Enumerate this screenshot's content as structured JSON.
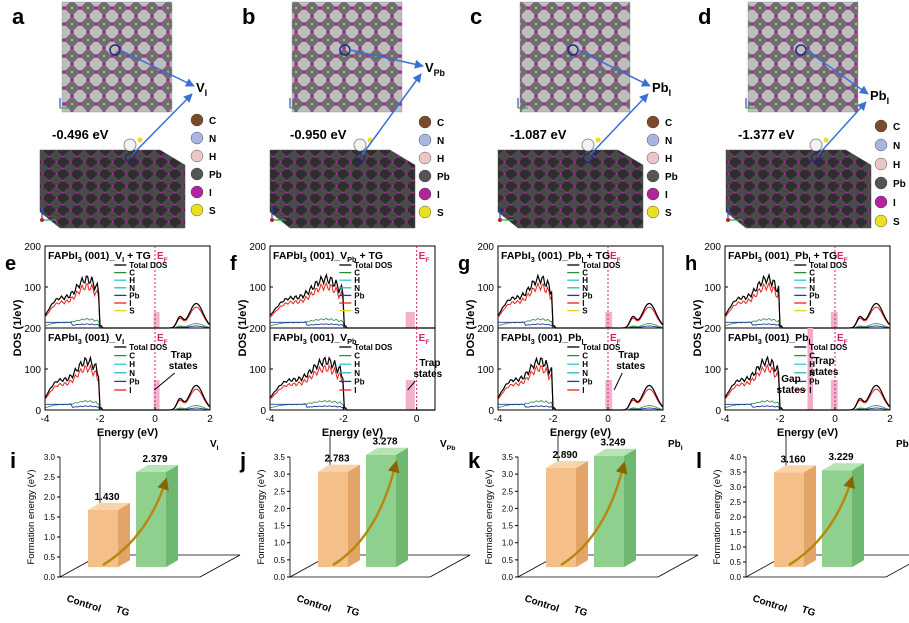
{
  "figure": {
    "letters": [
      "a",
      "b",
      "c",
      "d",
      "e",
      "f",
      "g",
      "h",
      "i",
      "j",
      "k",
      "l"
    ]
  },
  "structures": [
    {
      "letter": "a",
      "energy": "-0.496 eV",
      "defect_main": "V",
      "defect_sub": "I"
    },
    {
      "letter": "b",
      "energy": "-0.950 eV",
      "defect_main": "V",
      "defect_sub": "Pb"
    },
    {
      "letter": "c",
      "energy": "-1.087 eV",
      "defect_main": "Pb",
      "defect_sub": "I"
    },
    {
      "letter": "d",
      "energy": "-1.377 eV",
      "defect_main": "Pb",
      "defect_sub": "I"
    }
  ],
  "atom_legend": [
    {
      "label": "C",
      "color": "#7a4a2a"
    },
    {
      "label": "N",
      "color": "#aab4e0"
    },
    {
      "label": "H",
      "color": "#eac6c6"
    },
    {
      "label": "Pb",
      "color": "#555555"
    },
    {
      "label": "I",
      "color": "#b0249c"
    },
    {
      "label": "S",
      "color": "#e8e020"
    }
  ],
  "colors": {
    "dos_total": "#000000",
    "dos_C": "#2e8b3a",
    "dos_H": "#2ec7d0",
    "dos_N": "#27b5c0",
    "dos_Pb": "#1f3a9e",
    "dos_I": "#e8231e",
    "dos_S": "#e0d21a",
    "ef_line": "#d4226e",
    "trap_band": "#f3a9c9",
    "bar_control": "#f5bf8a",
    "bar_tg": "#8fd08f",
    "arrow": "#b8860b"
  },
  "chart_data": [
    {
      "panel": "e",
      "type": "line",
      "top_title": "FAPbI3 (001)_VI + TG",
      "bottom_title": "FAPbI3 (001)_VI",
      "top_legend": [
        "Total DOS",
        "C",
        "H",
        "N",
        "Pb",
        "I",
        "S"
      ],
      "bottom_legend": [
        "Total DOS",
        "C",
        "H",
        "N",
        "Pb",
        "I"
      ],
      "ef_label": "EF",
      "annotations": [
        "Trap states"
      ],
      "xlabel": "Energy (eV)",
      "ylabel": "DOS (1/eV)",
      "xlim": [
        -4,
        2
      ],
      "ylim": [
        0,
        200
      ],
      "xticks": [
        -4,
        -2,
        0,
        2
      ],
      "yticks": [
        0,
        100,
        200
      ],
      "trap_band": [
        -0.05,
        0.15
      ],
      "gap_band": null
    },
    {
      "panel": "f",
      "type": "line",
      "top_title": "FAPbI3 (001)_VPb + TG",
      "bottom_title": "FAPbI3 (001)_VPb",
      "top_legend": [
        "Total DOS",
        "C",
        "H",
        "N",
        "Pb",
        "I",
        "S"
      ],
      "bottom_legend": [
        "Total DOS",
        "C",
        "H",
        "N",
        "Pb",
        "I"
      ],
      "ef_label": "EF",
      "annotations": [
        "Trap states"
      ],
      "xlabel": "Energy (eV)",
      "ylabel": "DOS (1/eV)",
      "xlim": [
        -4,
        0.5
      ],
      "ylim": [
        0,
        200
      ],
      "xticks": [
        -4,
        -2,
        0
      ],
      "yticks": [
        0,
        100,
        200
      ],
      "trap_band": [
        -0.3,
        -0.05
      ],
      "gap_band": null
    },
    {
      "panel": "g",
      "type": "line",
      "top_title": "FAPbI3 (001)_PbI + TG",
      "bottom_title": "FAPbI3 (001)_PbI",
      "top_legend": [
        "Total DOS",
        "C",
        "H",
        "N",
        "Pb",
        "I",
        "S"
      ],
      "bottom_legend": [
        "Total DOS",
        "C",
        "H",
        "N",
        "Pb",
        "I"
      ],
      "ef_label": "EF",
      "annotations": [
        "Trap states"
      ],
      "xlabel": "Energy (eV)",
      "ylabel": "DOS (1/eV)",
      "xlim": [
        -4,
        2
      ],
      "ylim": [
        0,
        200
      ],
      "xticks": [
        -4,
        -2,
        0,
        2
      ],
      "yticks": [
        0,
        100,
        200
      ],
      "trap_band": [
        -0.1,
        0.15
      ],
      "gap_band": null
    },
    {
      "panel": "h",
      "type": "line",
      "top_title": "FAPbI3 (001)_PbI + TG",
      "bottom_title": "FAPbI3 (001)_PbI",
      "top_legend": [
        "Total DOS",
        "C",
        "H",
        "N",
        "Pb",
        "I",
        "S"
      ],
      "bottom_legend": [
        "Total DOS",
        "C",
        "H",
        "N",
        "Pb",
        "I"
      ],
      "ef_label": "EF",
      "annotations": [
        "Trap states",
        "Gap states"
      ],
      "xlabel": "Energy (eV)",
      "ylabel": "DOS (1/eV)",
      "xlim": [
        -4,
        2
      ],
      "ylim": [
        0,
        200
      ],
      "xticks": [
        -4,
        -2,
        0,
        2
      ],
      "yticks": [
        0,
        100,
        200
      ],
      "trap_band": [
        -0.15,
        0.1
      ],
      "gap_band": [
        -1.0,
        -0.8
      ]
    },
    {
      "panel": "i",
      "type": "bar",
      "categories": [
        "Control",
        "TG"
      ],
      "values": [
        1.43,
        2.379
      ],
      "value_labels": [
        "1.430",
        "2.379"
      ],
      "tag_main": "V",
      "tag_sub": "I",
      "ylabel": "Formation energy (eV)",
      "ylim": [
        0,
        3.0
      ],
      "yticks": [
        "0.0",
        "0.5",
        "1.0",
        "1.5",
        "2.0",
        "2.5",
        "3.0"
      ]
    },
    {
      "panel": "j",
      "type": "bar",
      "categories": [
        "Control",
        "TG"
      ],
      "values": [
        2.783,
        3.278
      ],
      "value_labels": [
        "2.783",
        "3.278"
      ],
      "tag_main": "V",
      "tag_sub": "Pb",
      "ylabel": "Formation energy (eV)",
      "ylim": [
        0,
        3.5
      ],
      "yticks": [
        "0.0",
        "0.5",
        "1.0",
        "1.5",
        "2.0",
        "2.5",
        "3.0",
        "3.5"
      ]
    },
    {
      "panel": "k",
      "type": "bar",
      "categories": [
        "Control",
        "TG"
      ],
      "values": [
        2.89,
        3.249
      ],
      "value_labels": [
        "2.890",
        "3.249"
      ],
      "tag_main": "Pb",
      "tag_sub": "I",
      "ylabel": "Formation energy (eV)",
      "ylim": [
        0,
        3.5
      ],
      "yticks": [
        "0.0",
        "0.5",
        "1.0",
        "1.5",
        "2.0",
        "2.5",
        "3.0",
        "3.5"
      ]
    },
    {
      "panel": "l",
      "type": "bar",
      "categories": [
        "Control",
        "TG"
      ],
      "values": [
        3.16,
        3.229
      ],
      "value_labels": [
        "3.160",
        "3.229"
      ],
      "tag_main": "Pb",
      "tag_sub": "I",
      "ylabel": "Formation energy (eV)",
      "ylim": [
        0,
        4.0
      ],
      "yticks": [
        "0.0",
        "0.5",
        "1.0",
        "1.5",
        "2.0",
        "2.5",
        "3.0",
        "3.5",
        "4.0"
      ]
    }
  ]
}
